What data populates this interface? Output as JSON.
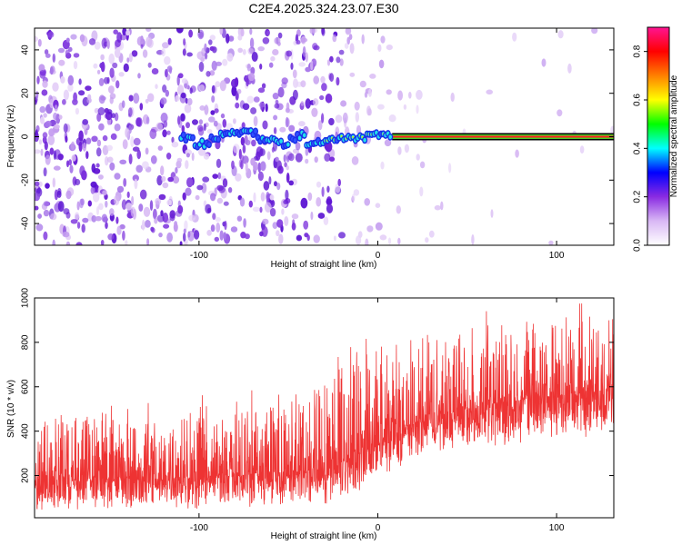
{
  "title": "C2E4.2025.324.23.07.E30",
  "chart_data": [
    {
      "type": "heatmap",
      "xlabel": "Height of straight line (km)",
      "ylabel": "Frequency (Hz)",
      "xlim": [
        -192,
        132
      ],
      "ylim": [
        -50,
        50
      ],
      "xticks": [
        -100,
        0,
        100
      ],
      "yticks": [
        -40,
        -20,
        0,
        20,
        40
      ],
      "grid": false,
      "colorbar": {
        "label": "Normalized spectral amplitude",
        "range": [
          0,
          0.9
        ],
        "ticks": [
          0.0,
          0.2,
          0.4,
          0.6,
          0.8
        ],
        "colors": [
          "#ffffff",
          "#d9b8f5",
          "#8a2be2",
          "#0000ff",
          "#00ffff",
          "#00ff00",
          "#ffff00",
          "#ff8000",
          "#ff0000",
          "#ff1493"
        ]
      },
      "features": {
        "carrier_line_frequency": 0,
        "carrier_line_from_x": 8,
        "noise_dense_until_x": -20,
        "noise_sparse_until_x": 60
      }
    },
    {
      "type": "line",
      "xlabel": "Height of straight line (km)",
      "ylabel": "SNR (10 * v/v)",
      "xlim": [
        -192,
        132
      ],
      "ylim": [
        10,
        1000
      ],
      "xticks": [
        -100,
        0,
        100
      ],
      "yticks": [
        200,
        400,
        600,
        800,
        1000
      ],
      "color": "#ee3333",
      "envelope": {
        "x": [
          -192,
          -100,
          -40,
          -20,
          0,
          20,
          60,
          100,
          132
        ],
        "low": [
          40,
          50,
          60,
          80,
          160,
          280,
          320,
          360,
          380
        ],
        "median": [
          180,
          190,
          220,
          260,
          340,
          440,
          520,
          560,
          580
        ],
        "high": [
          460,
          480,
          560,
          700,
          780,
          820,
          880,
          920,
          920
        ]
      }
    }
  ]
}
